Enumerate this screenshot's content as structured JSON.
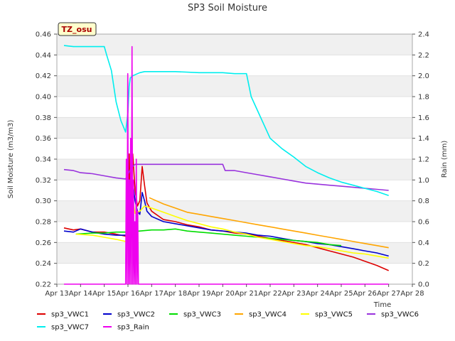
{
  "chart_data": {
    "type": "line",
    "title": "SP3 Soil Moisture",
    "xlabel": "Time",
    "ylabel": "Soil Moisture (m3/m3)",
    "y2label": "Rain (mm)",
    "badge": "TZ_osu",
    "xlim": [
      13,
      28
    ],
    "ylim": [
      0.22,
      0.46
    ],
    "y2lim": [
      0.0,
      2.4
    ],
    "x_ticks": [
      13,
      14,
      15,
      16,
      17,
      18,
      19,
      20,
      21,
      22,
      23,
      24,
      25,
      26,
      27,
      28
    ],
    "x_tick_labels": [
      "Apr 13",
      "Apr 14",
      "Apr 15",
      "Apr 16",
      "Apr 17",
      "Apr 18",
      "Apr 19",
      "Apr 20",
      "Apr 21",
      "Apr 22",
      "Apr 23",
      "Apr 24",
      "Apr 25",
      "Apr 26",
      "Apr 27",
      "Apr 28"
    ],
    "y_ticks": [
      0.22,
      0.24,
      0.26,
      0.28,
      0.3,
      0.32,
      0.34,
      0.36,
      0.38,
      0.4,
      0.42,
      0.44,
      0.46
    ],
    "y_tick_labels": [
      "0.22",
      "0.24",
      "0.26",
      "0.28",
      "0.30",
      "0.32",
      "0.34",
      "0.36",
      "0.38",
      "0.40",
      "0.42",
      "0.44",
      "0.46"
    ],
    "y2_ticks": [
      0.0,
      0.2,
      0.4,
      0.6,
      0.8,
      1.0,
      1.2,
      1.4,
      1.6,
      1.8,
      2.0,
      2.2,
      2.4
    ],
    "y2_tick_labels": [
      "0.0",
      "0.2",
      "0.4",
      "0.6",
      "0.8",
      "1.0",
      "1.2",
      "1.4",
      "1.6",
      "1.8",
      "2.0",
      "2.2",
      "2.4"
    ],
    "grid": "horizontal bands",
    "legend_position": "bottom",
    "series": [
      {
        "name": "sp3_VWC1",
        "color": "#dd0000",
        "axis": "left",
        "x": [
          13.3,
          13.7,
          14.0,
          14.5,
          15.0,
          15.5,
          15.9,
          16.0,
          16.05,
          16.1,
          16.15,
          16.2,
          16.3,
          16.4,
          16.5,
          16.6,
          16.7,
          16.8,
          17.0,
          17.5,
          18.0,
          18.5,
          19.0,
          19.5,
          20.0,
          20.5,
          21.0,
          21.5,
          22.0,
          22.5,
          23.0,
          23.5,
          24.0,
          24.5,
          25.0,
          25.5,
          26.0,
          26.5,
          27.0
        ],
        "y": [
          0.274,
          0.272,
          0.273,
          0.27,
          0.27,
          0.268,
          0.266,
          0.275,
          0.345,
          0.3,
          0.29,
          0.345,
          0.31,
          0.295,
          0.3,
          0.333,
          0.315,
          0.298,
          0.29,
          0.282,
          0.28,
          0.277,
          0.275,
          0.272,
          0.271,
          0.269,
          0.268,
          0.266,
          0.264,
          0.262,
          0.26,
          0.258,
          0.255,
          0.252,
          0.249,
          0.246,
          0.242,
          0.238,
          0.233
        ]
      },
      {
        "name": "sp3_VWC2",
        "color": "#0000cc",
        "axis": "left",
        "x": [
          13.3,
          13.7,
          14.0,
          14.5,
          15.0,
          15.5,
          15.9,
          16.0,
          16.05,
          16.1,
          16.15,
          16.2,
          16.3,
          16.4,
          16.5,
          16.6,
          16.7,
          16.8,
          17.0,
          17.5,
          18.0,
          18.5,
          19.0,
          19.5,
          20.0,
          20.5,
          21.0,
          21.5,
          22.0,
          22.5,
          23.0,
          23.5,
          24.0,
          24.5,
          25.0,
          25.5,
          26.0,
          26.5,
          27.0
        ],
        "y": [
          0.271,
          0.27,
          0.273,
          0.27,
          0.268,
          0.267,
          0.267,
          0.27,
          0.32,
          0.29,
          0.28,
          0.318,
          0.3,
          0.29,
          0.287,
          0.308,
          0.3,
          0.29,
          0.285,
          0.28,
          0.278,
          0.276,
          0.274,
          0.272,
          0.271,
          0.27,
          0.269,
          0.267,
          0.266,
          0.264,
          0.262,
          0.261,
          0.259,
          0.258,
          0.256,
          0.254,
          0.252,
          0.25,
          0.247
        ]
      },
      {
        "name": "sp3_VWC3",
        "color": "#00dd00",
        "axis": "left",
        "x": [
          13.8,
          14.5,
          15.0,
          15.5,
          16.0,
          16.5,
          17.0,
          17.5,
          18.0,
          18.5,
          19.0,
          19.5,
          20.0,
          20.5,
          21.0,
          21.5,
          22.0,
          22.5,
          23.0,
          23.5,
          24.0,
          24.5,
          25.0
        ],
        "y": [
          0.268,
          0.269,
          0.269,
          0.27,
          0.27,
          0.271,
          0.272,
          0.272,
          0.273,
          0.271,
          0.27,
          0.269,
          0.268,
          0.267,
          0.266,
          0.265,
          0.264,
          0.263,
          0.262,
          0.261,
          0.26,
          0.258,
          0.257
        ]
      },
      {
        "name": "sp3_VWC4",
        "color": "#ffa500",
        "axis": "left",
        "x": [
          16.9,
          17.2,
          17.5,
          18.0,
          18.5,
          19.0,
          19.5,
          20.0,
          20.5,
          21.0,
          21.5,
          22.0,
          22.5,
          23.0,
          23.5,
          24.0,
          24.5,
          25.0,
          25.5,
          26.0,
          26.5,
          27.0
        ],
        "y": [
          0.303,
          0.3,
          0.297,
          0.293,
          0.289,
          0.287,
          0.285,
          0.283,
          0.281,
          0.279,
          0.277,
          0.275,
          0.273,
          0.271,
          0.269,
          0.267,
          0.265,
          0.263,
          0.261,
          0.259,
          0.257,
          0.255
        ]
      },
      {
        "name": "sp3_VWC5",
        "color": "#ffff00",
        "axis": "left",
        "x": [
          13.8,
          14.5,
          15.0,
          15.5,
          15.9,
          16.0,
          16.1,
          16.2,
          16.3,
          16.5,
          16.7,
          17.0,
          17.5,
          18.0,
          18.5,
          19.0,
          19.5,
          20.0,
          20.5,
          21.0,
          21.5,
          22.0,
          22.5,
          23.0,
          23.5,
          24.0,
          24.5,
          25.0,
          25.5,
          26.0,
          26.5,
          27.0
        ],
        "y": [
          0.268,
          0.267,
          0.265,
          0.263,
          0.261,
          0.27,
          0.285,
          0.3,
          0.288,
          0.29,
          0.295,
          0.293,
          0.289,
          0.285,
          0.281,
          0.278,
          0.275,
          0.273,
          0.27,
          0.268,
          0.265,
          0.263,
          0.261,
          0.259,
          0.257,
          0.256,
          0.254,
          0.252,
          0.25,
          0.249,
          0.247,
          0.245
        ]
      },
      {
        "name": "sp3_VWC6",
        "color": "#9933dd",
        "axis": "left",
        "x": [
          13.3,
          13.7,
          14.0,
          14.5,
          15.0,
          15.5,
          15.9,
          16.1,
          16.2,
          16.3,
          16.5,
          16.8,
          17.0,
          18.0,
          19.0,
          20.0,
          20.1,
          20.5,
          21.0,
          21.5,
          22.0,
          22.5,
          23.0,
          23.5,
          24.0,
          24.5,
          25.0,
          25.5,
          26.0,
          26.5,
          27.0
        ],
        "y": [
          0.33,
          0.329,
          0.327,
          0.326,
          0.324,
          0.322,
          0.321,
          0.33,
          0.333,
          0.335,
          0.335,
          0.335,
          0.335,
          0.335,
          0.335,
          0.335,
          0.329,
          0.329,
          0.327,
          0.325,
          0.323,
          0.321,
          0.319,
          0.317,
          0.316,
          0.315,
          0.314,
          0.313,
          0.312,
          0.311,
          0.31
        ]
      },
      {
        "name": "sp3_VWC7",
        "color": "#00eeee",
        "axis": "left",
        "x": [
          13.3,
          13.7,
          14.0,
          14.5,
          15.0,
          15.1,
          15.3,
          15.5,
          15.7,
          15.9,
          16.0,
          16.05,
          16.1,
          16.2,
          16.3,
          16.5,
          16.7,
          17.0,
          18.0,
          19.0,
          19.5,
          20.0,
          20.5,
          21.0,
          21.2,
          21.5,
          22.0,
          22.5,
          23.0,
          23.5,
          24.0,
          24.5,
          25.0,
          25.5,
          26.0,
          26.5,
          27.0
        ],
        "y": [
          0.449,
          0.448,
          0.448,
          0.448,
          0.448,
          0.44,
          0.425,
          0.395,
          0.377,
          0.366,
          0.385,
          0.41,
          0.418,
          0.42,
          0.421,
          0.423,
          0.424,
          0.424,
          0.424,
          0.423,
          0.423,
          0.423,
          0.422,
          0.422,
          0.4,
          0.385,
          0.36,
          0.35,
          0.342,
          0.333,
          0.327,
          0.322,
          0.318,
          0.315,
          0.312,
          0.309,
          0.305
        ]
      },
      {
        "name": "sp3_Rain",
        "color": "#ee00ee",
        "axis": "right",
        "x": [
          13.3,
          15.9,
          15.93,
          15.96,
          15.99,
          16.02,
          16.05,
          16.08,
          16.11,
          16.14,
          16.17,
          16.2,
          16.23,
          16.26,
          16.29,
          16.32,
          16.35,
          16.38,
          16.41,
          16.44,
          16.47,
          16.5,
          16.53,
          27.0
        ],
        "y": [
          0.0,
          0.0,
          1.2,
          0.0,
          2.02,
          0.0,
          1.0,
          0.0,
          1.4,
          0.0,
          2.28,
          0.0,
          1.0,
          0.0,
          0.6,
          0.0,
          1.2,
          0.0,
          0.7,
          0.0,
          0.0,
          0.0,
          0.0,
          0.0
        ]
      }
    ]
  }
}
